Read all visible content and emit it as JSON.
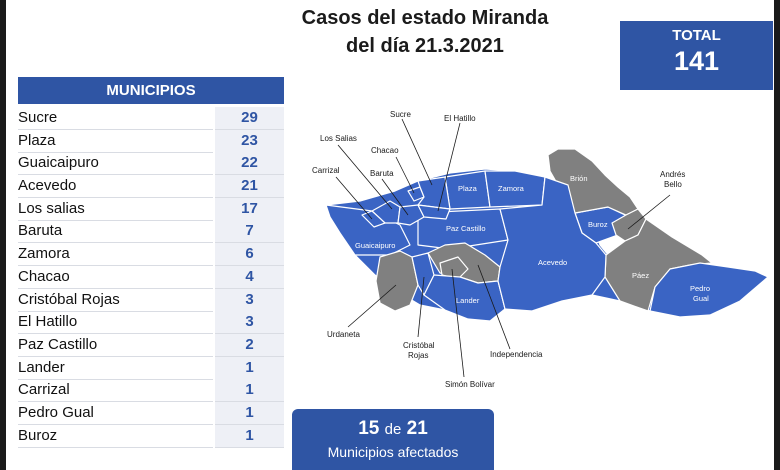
{
  "title": {
    "line1": "Casos del estado Miranda",
    "line2": "del día 21.3.2021"
  },
  "total": {
    "label": "TOTAL",
    "value": "141"
  },
  "municipios": {
    "header": "MUNICIPIOS",
    "rows": [
      {
        "name": "Sucre",
        "cases": "29"
      },
      {
        "name": "Plaza",
        "cases": "23"
      },
      {
        "name": "Guaicaipuro",
        "cases": "22"
      },
      {
        "name": "Acevedo",
        "cases": "21"
      },
      {
        "name": "Los salias",
        "cases": "17"
      },
      {
        "name": "Baruta",
        "cases": "7"
      },
      {
        "name": "Zamora",
        "cases": "6"
      },
      {
        "name": "Chacao",
        "cases": "4"
      },
      {
        "name": "Cristóbal Rojas",
        "cases": "3"
      },
      {
        "name": "El Hatillo",
        "cases": "3"
      },
      {
        "name": "Paz Castillo",
        "cases": "2"
      },
      {
        "name": "Lander",
        "cases": "1"
      },
      {
        "name": "Carrizal",
        "cases": "1"
      },
      {
        "name": "Pedro Gual",
        "cases": "1"
      },
      {
        "name": "Buroz",
        "cases": "1"
      }
    ]
  },
  "affected": {
    "count": "15",
    "connector": "de",
    "of": "21",
    "caption": "Municipios afectados"
  },
  "map": {
    "colors": {
      "affected": "#3a64c4",
      "unaffected": "#808080",
      "border": "#ffffff"
    },
    "inner_labels": {
      "plaza": "Plaza",
      "zamora": "Zamora",
      "brion": "Brión",
      "buroz": "Buroz",
      "guaicaipuro": "Guaicaipuro",
      "paz_castillo": "Paz Castillo",
      "acevedo": "Acevedo",
      "lander": "Lander",
      "paez": "Páez",
      "pedro_gual_1": "Pedro",
      "pedro_gual_2": "Gual"
    },
    "callouts": {
      "sucre": "Sucre",
      "el_hatillo": "El Hatillo",
      "los_salias": "Los Salias",
      "chacao": "Chacao",
      "carrizal": "Carrizal",
      "baruta": "Baruta",
      "andres_bello_1": "Andrés",
      "andres_bello_2": "Bello",
      "urdaneta": "Urdaneta",
      "cristobal_rojas_1": "Cristóbal",
      "cristobal_rojas_2": "Rojas",
      "independencia": "Independencia",
      "simon_bolivar": "Simón Bolívar"
    }
  }
}
